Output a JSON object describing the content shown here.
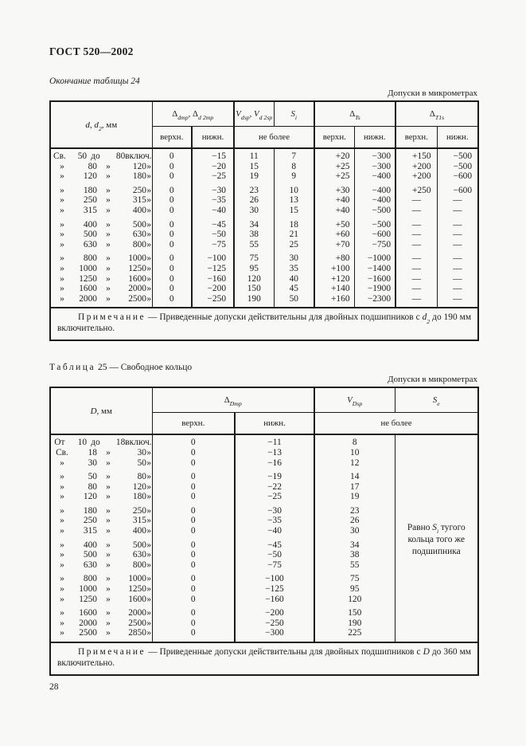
{
  "doc": {
    "standard": "ГОСТ 520—2002",
    "continuation_caption": "Окончание таблицы 24",
    "units_caption": "Допуски в микрометрах",
    "page_number": "28"
  },
  "labels": {
    "upper": "верхн.",
    "lower": "нижн.",
    "not_more": "не более"
  },
  "table24": {
    "headers": {
      "size": [
        {
          "i": "d"
        },
        {
          "t": ", "
        },
        {
          "i": "d"
        },
        {
          "s": "2"
        },
        {
          "t": ", мм"
        }
      ],
      "delta_d": [
        {
          "t": "Δ"
        },
        {
          "s": "dmp"
        },
        {
          "t": ", Δ"
        },
        {
          "s": "d 2mp"
        }
      ],
      "v": [
        {
          "i": "V"
        },
        {
          "s": "dsp"
        },
        {
          "t": ", "
        },
        {
          "i": "V"
        },
        {
          "s": "d 2sp"
        }
      ],
      "s": [
        {
          "i": "S"
        },
        {
          "s": "i"
        }
      ],
      "delta_ts": [
        {
          "t": "Δ"
        },
        {
          "s": "Ts"
        }
      ],
      "delta_t1s": [
        {
          "t": "Δ"
        },
        {
          "s": "T1s"
        }
      ]
    },
    "groups": [
      [
        {
          "range": [
            "Св.",
            "50",
            "до",
            "80",
            "включ."
          ],
          "vals": [
            "0",
            "−15",
            "11",
            "7",
            "+20",
            "−300",
            "+150",
            "−500"
          ]
        },
        {
          "range": [
            "»",
            "80",
            "»",
            "120",
            "»"
          ],
          "vals": [
            "0",
            "−20",
            "15",
            "8",
            "+25",
            "−300",
            "+200",
            "−500"
          ]
        },
        {
          "range": [
            "»",
            "120",
            "»",
            "180",
            "»"
          ],
          "vals": [
            "0",
            "−25",
            "19",
            "9",
            "+25",
            "−400",
            "+200",
            "−600"
          ]
        }
      ],
      [
        {
          "range": [
            "»",
            "180",
            "»",
            "250",
            "»"
          ],
          "vals": [
            "0",
            "−30",
            "23",
            "10",
            "+30",
            "−400",
            "+250",
            "−600"
          ]
        },
        {
          "range": [
            "»",
            "250",
            "»",
            "315",
            "»"
          ],
          "vals": [
            "0",
            "−35",
            "26",
            "13",
            "+40",
            "−400",
            "—",
            "—"
          ]
        },
        {
          "range": [
            "»",
            "315",
            "»",
            "400",
            "»"
          ],
          "vals": [
            "0",
            "−40",
            "30",
            "15",
            "+40",
            "−500",
            "—",
            "—"
          ]
        }
      ],
      [
        {
          "range": [
            "»",
            "400",
            "»",
            "500",
            "»"
          ],
          "vals": [
            "0",
            "−45",
            "34",
            "18",
            "+50",
            "−500",
            "—",
            "—"
          ]
        },
        {
          "range": [
            "»",
            "500",
            "»",
            "630",
            "»"
          ],
          "vals": [
            "0",
            "−50",
            "38",
            "21",
            "+60",
            "−600",
            "—",
            "—"
          ]
        },
        {
          "range": [
            "»",
            "630",
            "»",
            "800",
            "»"
          ],
          "vals": [
            "0",
            "−75",
            "55",
            "25",
            "+70",
            "−750",
            "—",
            "—"
          ]
        }
      ],
      [
        {
          "range": [
            "»",
            "800",
            "»",
            "1000",
            "»"
          ],
          "vals": [
            "0",
            "−100",
            "75",
            "30",
            "+80",
            "−1000",
            "—",
            "—"
          ]
        },
        {
          "range": [
            "»",
            "1000",
            "»",
            "1250",
            "»"
          ],
          "vals": [
            "0",
            "−125",
            "95",
            "35",
            "+100",
            "−1400",
            "—",
            "—"
          ]
        },
        {
          "range": [
            "»",
            "1250",
            "»",
            "1600",
            "»"
          ],
          "vals": [
            "0",
            "−160",
            "120",
            "40",
            "+120",
            "−1600",
            "—",
            "—"
          ]
        },
        {
          "range": [
            "»",
            "1600",
            "»",
            "2000",
            "»"
          ],
          "vals": [
            "0",
            "−200",
            "150",
            "45",
            "+140",
            "−1900",
            "—",
            "—"
          ]
        },
        {
          "range": [
            "»",
            "2000",
            "»",
            "2500",
            "»"
          ],
          "vals": [
            "0",
            "−250",
            "190",
            "50",
            "+160",
            "−2300",
            "—",
            "—"
          ]
        }
      ]
    ],
    "note": [
      {
        "sp": "Примечание"
      },
      {
        "t": " — Приведенные допуски действительны для двойных подшипников с "
      },
      {
        "i": "d"
      },
      {
        "s": "2"
      },
      {
        "t": " до 190 мм включительно."
      }
    ]
  },
  "table25": {
    "caption": [
      {
        "sp": "Таблица"
      },
      {
        "t": " 25 — Свободное кольцо"
      }
    ],
    "headers": {
      "size": [
        {
          "i": "D"
        },
        {
          "t": ", мм"
        }
      ],
      "delta_D": [
        {
          "t": "Δ"
        },
        {
          "s": "Dmp"
        }
      ],
      "v_D": [
        {
          "i": "V"
        },
        {
          "s": "Dsp"
        }
      ],
      "s_e": [
        {
          "i": "S"
        },
        {
          "s": "e"
        }
      ]
    },
    "groups": [
      [
        {
          "range": [
            "От",
            "10",
            "до",
            "18",
            "включ."
          ],
          "vals": [
            "0",
            "−11",
            "8"
          ]
        },
        {
          "range": [
            "Св.",
            "18",
            "»",
            "30",
            "»"
          ],
          "vals": [
            "0",
            "−13",
            "10"
          ]
        },
        {
          "range": [
            "»",
            "30",
            "»",
            "50",
            "»"
          ],
          "vals": [
            "0",
            "−16",
            "12"
          ]
        }
      ],
      [
        {
          "range": [
            "»",
            "50",
            "»",
            "80",
            "»"
          ],
          "vals": [
            "0",
            "−19",
            "14"
          ]
        },
        {
          "range": [
            "»",
            "80",
            "»",
            "120",
            "»"
          ],
          "vals": [
            "0",
            "−22",
            "17"
          ]
        },
        {
          "range": [
            "»",
            "120",
            "»",
            "180",
            "»"
          ],
          "vals": [
            "0",
            "−25",
            "19"
          ]
        }
      ],
      [
        {
          "range": [
            "»",
            "180",
            "»",
            "250",
            "»"
          ],
          "vals": [
            "0",
            "−30",
            "23"
          ]
        },
        {
          "range": [
            "»",
            "250",
            "»",
            "315",
            "»"
          ],
          "vals": [
            "0",
            "−35",
            "26"
          ]
        },
        {
          "range": [
            "»",
            "315",
            "»",
            "400",
            "»"
          ],
          "vals": [
            "0",
            "−40",
            "30"
          ]
        }
      ],
      [
        {
          "range": [
            "»",
            "400",
            "»",
            "500",
            "»"
          ],
          "vals": [
            "0",
            "−45",
            "34"
          ]
        },
        {
          "range": [
            "»",
            "500",
            "»",
            "630",
            "»"
          ],
          "vals": [
            "0",
            "−50",
            "38"
          ]
        },
        {
          "range": [
            "»",
            "630",
            "»",
            "800",
            "»"
          ],
          "vals": [
            "0",
            "−75",
            "55"
          ]
        }
      ],
      [
        {
          "range": [
            "»",
            "800",
            "»",
            "1000",
            "»"
          ],
          "vals": [
            "0",
            "−100",
            "75"
          ]
        },
        {
          "range": [
            "»",
            "1000",
            "»",
            "1250",
            "»"
          ],
          "vals": [
            "0",
            "−125",
            "95"
          ]
        },
        {
          "range": [
            "»",
            "1250",
            "»",
            "1600",
            "»"
          ],
          "vals": [
            "0",
            "−160",
            "120"
          ]
        }
      ],
      [
        {
          "range": [
            "»",
            "1600",
            "»",
            "2000",
            "»"
          ],
          "vals": [
            "0",
            "−200",
            "150"
          ]
        },
        {
          "range": [
            "»",
            "2000",
            "»",
            "2500",
            "»"
          ],
          "vals": [
            "0",
            "−250",
            "190"
          ]
        },
        {
          "range": [
            "»",
            "2500",
            "»",
            "2850",
            "»"
          ],
          "vals": [
            "0",
            "−300",
            "225"
          ]
        }
      ]
    ],
    "s_cell": [
      {
        "t": "Равно "
      },
      {
        "i": "S"
      },
      {
        "s": "i"
      },
      {
        "t": " тугого"
      },
      {
        "br": true
      },
      {
        "t": "кольца того же"
      },
      {
        "br": true
      },
      {
        "t": "подшипника"
      }
    ],
    "note": [
      {
        "sp": "Примечание"
      },
      {
        "t": " — Приведенные допуски действительны для двойных подшипников с "
      },
      {
        "i": "D"
      },
      {
        "t": " до 360 мм включительно."
      }
    ]
  }
}
